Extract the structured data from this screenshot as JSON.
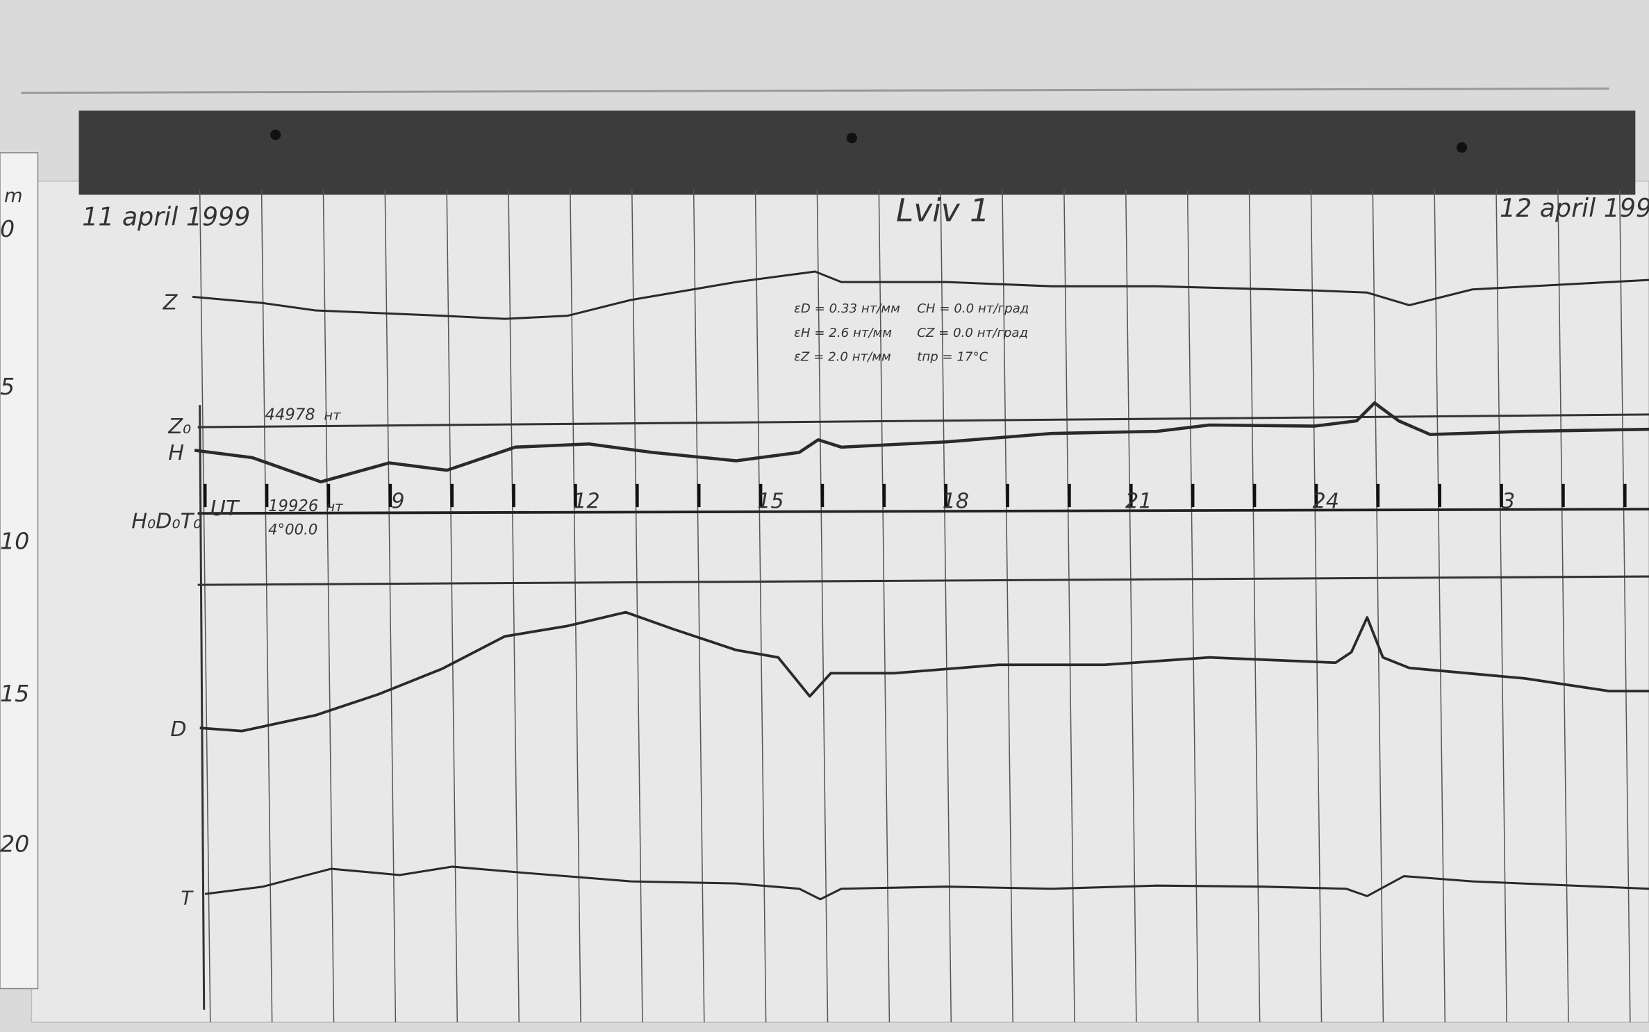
{
  "header": {
    "date_left": "11 april 1999",
    "station": "Lviv 1",
    "date_right": "12 april 199"
  },
  "ruler": {
    "unit": "m",
    "marks": [
      "0",
      "5",
      "10",
      "15",
      "20"
    ]
  },
  "traces": {
    "z": "Z",
    "z0": "Z₀",
    "h": "H",
    "baselines": "H₀D₀T₀",
    "d": "D",
    "t": "T"
  },
  "baseline_values": {
    "z0": "44978",
    "z0_unit": "нт",
    "h0": "19926",
    "h0_unit": "нт",
    "t0": "4°00.0"
  },
  "time_axis": {
    "label": "UT",
    "hours": [
      "9",
      "12",
      "15",
      "18",
      "21",
      "24",
      "3"
    ]
  },
  "scale_notes": [
    "εD = 0.33 нт/мм",
    "εH = 2.6 нт/мм",
    "εZ = 2.0 нт/мм",
    "CH = 0.0 нт/град",
    "CZ = 0.0 нт/град",
    "tпр = 17°C"
  ]
}
